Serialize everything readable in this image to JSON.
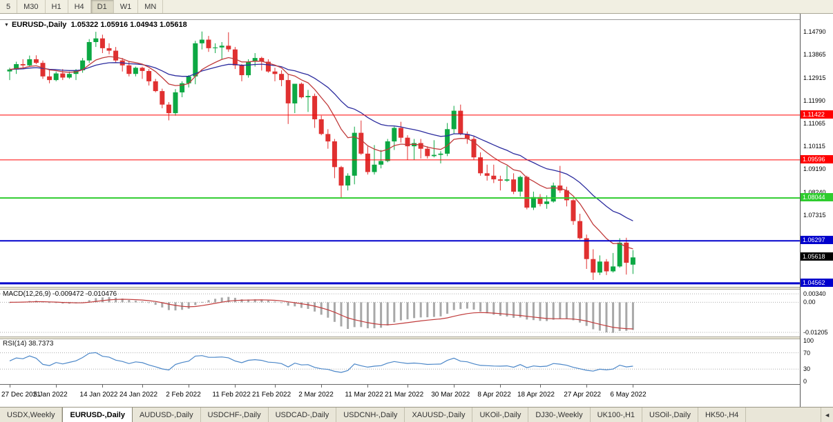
{
  "toolbar": {
    "periods": [
      "5",
      "M30",
      "H1",
      "H4",
      "D1",
      "W1",
      "MN"
    ],
    "active_period": "D1"
  },
  "chart": {
    "dropdown_icon": "▼",
    "symbol_title": "EURUSD-,Daily",
    "ohlc_text": "1.05322 1.05916 1.04943 1.05618"
  },
  "price_scale": {
    "ticks": [
      "1.14790",
      "1.13865",
      "1.12915",
      "1.11990",
      "1.11065",
      "1.10115",
      "1.09190",
      "1.08240",
      "1.07315"
    ],
    "current": {
      "label": "1.05618",
      "price": 1.05618,
      "bg": "#000000"
    }
  },
  "macd": {
    "label": "MACD(12,26,9) -0.009472 -0.010476",
    "scale": [
      {
        "label": "0.00340",
        "value": 0.0034
      },
      {
        "label": "0.00",
        "value": 0
      },
      {
        "label": "-0.01205",
        "value": -0.01205
      }
    ],
    "ylim": [
      -0.0137,
      0.0051
    ]
  },
  "rsi": {
    "label": "RSI(14) 38.7373",
    "scale": [
      {
        "label": "100",
        "value": 100
      },
      {
        "label": "70",
        "value": 70
      },
      {
        "label": "30",
        "value": 30
      },
      {
        "label": "0",
        "value": 0
      }
    ],
    "dotted_levels": [
      70,
      30
    ],
    "ylim": [
      -5,
      103
    ]
  },
  "x_axis": {
    "ticks": [
      {
        "label": "27 Dec 2021",
        "index": 0
      },
      {
        "label": "5 Jan 2022",
        "index": 7
      },
      {
        "label": "14 Jan 2022",
        "index": 14
      },
      {
        "label": "24 Jan 2022",
        "index": 20
      },
      {
        "label": "2 Feb 2022",
        "index": 27
      },
      {
        "label": "11 Feb 2022",
        "index": 34
      },
      {
        "label": "21 Feb 2022",
        "index": 40
      },
      {
        "label": "2 Mar 2022",
        "index": 47
      },
      {
        "label": "11 Mar 2022",
        "index": 54
      },
      {
        "label": "21 Mar 2022",
        "index": 60
      },
      {
        "label": "30 Mar 2022",
        "index": 67
      },
      {
        "label": "8 Apr 2022",
        "index": 74
      },
      {
        "label": "18 Apr 2022",
        "index": 80
      },
      {
        "label": "27 Apr 2022",
        "index": 87
      },
      {
        "label": "6 May 2022",
        "index": 94
      }
    ]
  },
  "tabs": {
    "items": [
      "USDX,Weekly",
      "EURUSD-,Daily",
      "AUDUSD-,Daily",
      "USDCHF-,Daily",
      "USDCAD-,Daily",
      "USDCNH-,Daily",
      "XAUUSD-,Daily",
      "UKOil-,Daily",
      "DJ30-,Weekly",
      "UK100-,H1",
      "USOil-,Daily",
      "HK50-,H4"
    ],
    "active": "EURUSD-,Daily",
    "scroll_left_icon": "◄"
  },
  "colors": {
    "up": "#0ca843",
    "down": "#e03030",
    "ma_fast": "#c03a3a",
    "ma_slow": "#2b2b9e",
    "macd_hist": "#a8a8a8",
    "macd_signal": "#c03a3a",
    "rsi_line": "#4a86c8",
    "level_red": "#ff0000",
    "level_green": "#2ecc2e",
    "level_blue": "#0000cc",
    "grid_dotted": "#aaaaaa"
  },
  "chart_data": {
    "type": "candlestick",
    "symbol": "EURUSD-",
    "timeframe": "Daily",
    "last_ohlc": {
      "open": 1.05322,
      "high": 1.05916,
      "low": 1.04943,
      "close": 1.05618
    },
    "ylim": [
      1.0439,
      1.153
    ],
    "levels": [
      {
        "label": "1.11422",
        "price": 1.11422,
        "color_key": "level_red",
        "width": 1
      },
      {
        "label": "1.09596",
        "price": 1.09596,
        "color_key": "level_red",
        "width": 1
      },
      {
        "label": "1.08044",
        "price": 1.08044,
        "color_key": "level_green",
        "width": 2
      },
      {
        "label": "1.06297",
        "price": 1.06297,
        "color_key": "level_blue",
        "width": 2
      },
      {
        "label": "1.04562",
        "price": 1.04562,
        "color_key": "level_blue",
        "width": 3
      }
    ],
    "overlays": [
      {
        "name": "ma-fast",
        "type": "ema",
        "period": 10,
        "color_key": "ma_fast"
      },
      {
        "name": "ma-slow",
        "type": "ema",
        "period": 24,
        "color_key": "ma_slow"
      }
    ],
    "indicators": [
      "MACD(12,26,9)",
      "RSI(14)"
    ],
    "ohlc": [
      [
        1.132,
        1.1335,
        1.1285,
        1.1328
      ],
      [
        1.1328,
        1.136,
        1.131,
        1.135
      ],
      [
        1.135,
        1.137,
        1.1335,
        1.1345
      ],
      [
        1.1345,
        1.1385,
        1.134,
        1.137
      ],
      [
        1.137,
        1.1386,
        1.135,
        1.1355
      ],
      [
        1.1355,
        1.1365,
        1.129,
        1.13
      ],
      [
        1.13,
        1.1325,
        1.1272,
        1.1285
      ],
      [
        1.1285,
        1.132,
        1.128,
        1.1312
      ],
      [
        1.1312,
        1.133,
        1.1285,
        1.1295
      ],
      [
        1.1295,
        1.132,
        1.129,
        1.131
      ],
      [
        1.131,
        1.133,
        1.1285,
        1.1325
      ],
      [
        1.1325,
        1.1375,
        1.1315,
        1.1365
      ],
      [
        1.1365,
        1.1452,
        1.1355,
        1.144
      ],
      [
        1.144,
        1.1482,
        1.142,
        1.1455
      ],
      [
        1.1455,
        1.147,
        1.1395,
        1.1415
      ],
      [
        1.1415,
        1.1435,
        1.139,
        1.1405
      ],
      [
        1.1405,
        1.142,
        1.1355,
        1.1365
      ],
      [
        1.1365,
        1.1375,
        1.132,
        1.1345
      ],
      [
        1.1345,
        1.136,
        1.13,
        1.131
      ],
      [
        1.131,
        1.134,
        1.13,
        1.1335
      ],
      [
        1.1335,
        1.134,
        1.129,
        1.1322
      ],
      [
        1.1322,
        1.133,
        1.1263,
        1.128
      ],
      [
        1.128,
        1.129,
        1.1235,
        1.124
      ],
      [
        1.124,
        1.125,
        1.117,
        1.1185
      ],
      [
        1.1185,
        1.1195,
        1.1121,
        1.115
      ],
      [
        1.115,
        1.1248,
        1.114,
        1.1235
      ],
      [
        1.1235,
        1.128,
        1.1215,
        1.1272
      ],
      [
        1.1272,
        1.1305,
        1.1255,
        1.13
      ],
      [
        1.13,
        1.1445,
        1.1268,
        1.1435
      ],
      [
        1.1435,
        1.1483,
        1.141,
        1.145
      ],
      [
        1.145,
        1.1465,
        1.14,
        1.1415
      ],
      [
        1.1415,
        1.1435,
        1.1395,
        1.1418
      ],
      [
        1.1418,
        1.144,
        1.137,
        1.1425
      ],
      [
        1.1425,
        1.148,
        1.14,
        1.141
      ],
      [
        1.141,
        1.142,
        1.133,
        1.1345
      ],
      [
        1.1345,
        1.135,
        1.128,
        1.1305
      ],
      [
        1.1305,
        1.137,
        1.1295,
        1.136
      ],
      [
        1.136,
        1.1395,
        1.134,
        1.1375
      ],
      [
        1.1375,
        1.138,
        1.1324,
        1.136
      ],
      [
        1.136,
        1.137,
        1.1315,
        1.132
      ],
      [
        1.132,
        1.1335,
        1.128,
        1.131
      ],
      [
        1.131,
        1.1325,
        1.126,
        1.1285
      ],
      [
        1.1285,
        1.131,
        1.1106,
        1.119
      ],
      [
        1.119,
        1.127,
        1.115,
        1.127
      ],
      [
        1.127,
        1.1275,
        1.121,
        1.1215
      ],
      [
        1.1215,
        1.1245,
        1.1155,
        1.122
      ],
      [
        1.122,
        1.123,
        1.109,
        1.1125
      ],
      [
        1.1125,
        1.114,
        1.106,
        1.1065
      ],
      [
        1.1065,
        1.1085,
        1.1005,
        1.1035
      ],
      [
        1.1035,
        1.1045,
        1.0885,
        1.093
      ],
      [
        1.093,
        1.0935,
        1.0806,
        1.0855
      ],
      [
        1.0855,
        1.0905,
        1.0835,
        1.0895
      ],
      [
        1.0895,
        1.1095,
        1.086,
        1.107
      ],
      [
        1.107,
        1.112,
        1.098,
        1.0985
      ],
      [
        1.0985,
        1.1015,
        1.09,
        1.091
      ],
      [
        1.091,
        1.102,
        1.09,
        1.094
      ],
      [
        1.094,
        1.1,
        1.0925,
        1.0955
      ],
      [
        1.0955,
        1.1045,
        1.095,
        1.1035
      ],
      [
        1.1035,
        1.1095,
        1.1,
        1.109
      ],
      [
        1.109,
        1.1115,
        1.103,
        1.105
      ],
      [
        1.105,
        1.106,
        1.096,
        1.1015
      ],
      [
        1.1015,
        1.1045,
        1.096,
        1.1028
      ],
      [
        1.1028,
        1.1045,
        1.0965,
        1.1005
      ],
      [
        1.1005,
        1.1015,
        1.0965,
        1.0975
      ],
      [
        1.0975,
        1.104,
        1.097,
        1.098
      ],
      [
        1.098,
        1.0995,
        1.0945,
        1.0985
      ],
      [
        1.0985,
        1.111,
        1.0975,
        1.1085
      ],
      [
        1.1085,
        1.118,
        1.1065,
        1.116
      ],
      [
        1.116,
        1.1185,
        1.106,
        1.1065
      ],
      [
        1.1065,
        1.1075,
        1.1025,
        1.1045
      ],
      [
        1.1045,
        1.1055,
        1.096,
        1.097
      ],
      [
        1.097,
        1.099,
        1.0895,
        1.0905
      ],
      [
        1.0905,
        1.094,
        1.0875,
        1.0895
      ],
      [
        1.0895,
        1.094,
        1.0865,
        1.088
      ],
      [
        1.088,
        1.0895,
        1.0835,
        1.0875
      ],
      [
        1.0875,
        1.0935,
        1.087,
        1.088
      ],
      [
        1.088,
        1.0905,
        1.082,
        1.083
      ],
      [
        1.083,
        1.0895,
        1.081,
        1.089
      ],
      [
        1.089,
        1.0895,
        1.0758,
        1.0765
      ],
      [
        1.0765,
        1.083,
        1.0755,
        1.0808
      ],
      [
        1.0808,
        1.082,
        1.077,
        1.078
      ],
      [
        1.078,
        1.0815,
        1.076,
        1.079
      ],
      [
        1.079,
        1.0867,
        1.0785,
        1.0855
      ],
      [
        1.0855,
        1.0935,
        1.0825,
        1.0835
      ],
      [
        1.0835,
        1.085,
        1.077,
        1.0795
      ],
      [
        1.0795,
        1.08,
        1.0695,
        1.071
      ],
      [
        1.071,
        1.074,
        1.0635,
        1.064
      ],
      [
        1.064,
        1.0655,
        1.0515,
        1.0555
      ],
      [
        1.0555,
        1.0595,
        1.047,
        1.05
      ],
      [
        1.05,
        1.057,
        1.049,
        1.0545
      ],
      [
        1.0545,
        1.0555,
        1.049,
        1.0505
      ],
      [
        1.0505,
        1.058,
        1.05,
        1.0525
      ],
      [
        1.0525,
        1.064,
        1.052,
        1.0622
      ],
      [
        1.0622,
        1.0642,
        1.0492,
        1.054
      ],
      [
        1.05322,
        1.05916,
        1.04943,
        1.05618
      ]
    ]
  }
}
